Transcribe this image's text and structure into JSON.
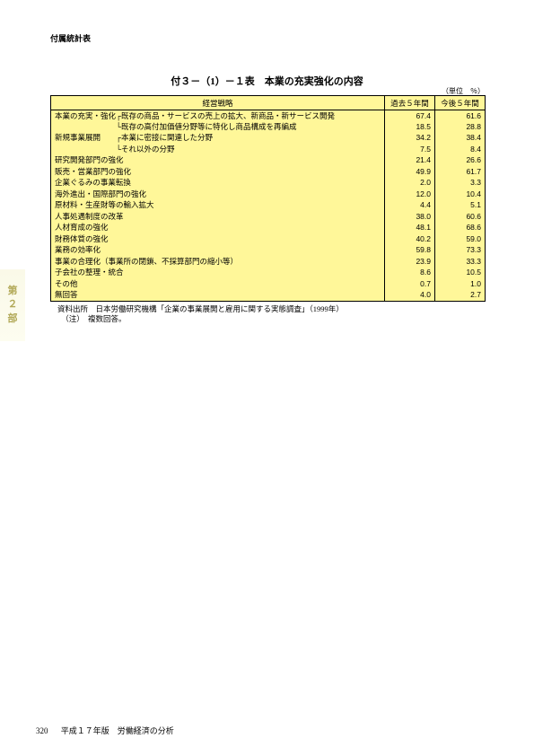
{
  "header_label": "付属統計表",
  "side_tab": [
    "第",
    "２",
    "部"
  ],
  "title": "付３－（1）－１表　本業の充実強化の内容",
  "unit": "（単位　％）",
  "columns": [
    "経営戦略",
    "過去５年間",
    "今後５年間"
  ],
  "rows": [
    {
      "label": "本業の充実・強化┌既存の商品・サービスの売上の拡大、新商品・新サービス開発",
      "v1": "67.4",
      "v2": "61.6"
    },
    {
      "label": "　　　　　　　　└既存の高付加価値分野等に特化し商品構成を再編成",
      "v1": "18.5",
      "v2": "28.8"
    },
    {
      "label": "新規事業展開　　┌本業に密接に関連した分野",
      "v1": "34.2",
      "v2": "38.4"
    },
    {
      "label": "　　　　　　　　└それ以外の分野",
      "v1": "7.5",
      "v2": "8.4"
    },
    {
      "label": "研究開発部門の強化",
      "v1": "21.4",
      "v2": "26.6"
    },
    {
      "label": "販売・営業部門の強化",
      "v1": "49.9",
      "v2": "61.7"
    },
    {
      "label": "企業ぐるみの事業転換",
      "v1": "2.0",
      "v2": "3.3"
    },
    {
      "label": "海外進出・国際部門の強化",
      "v1": "12.0",
      "v2": "10.4"
    },
    {
      "label": "原材料・生産財等の輸入拡大",
      "v1": "4.4",
      "v2": "5.1"
    },
    {
      "label": "人事処遇制度の改革",
      "v1": "38.0",
      "v2": "60.6"
    },
    {
      "label": "人材育成の強化",
      "v1": "48.1",
      "v2": "68.6"
    },
    {
      "label": "財務体質の強化",
      "v1": "40.2",
      "v2": "59.0"
    },
    {
      "label": "業務の効率化",
      "v1": "59.8",
      "v2": "73.3"
    },
    {
      "label": "事業の合理化（事業所の閉鎖、不採算部門の縮小等）",
      "v1": "23.9",
      "v2": "33.3"
    },
    {
      "label": "子会社の整理・統合",
      "v1": "8.6",
      "v2": "10.5"
    },
    {
      "label": "その他",
      "v1": "0.7",
      "v2": "1.0"
    },
    {
      "label": "無回答",
      "v1": "4.0",
      "v2": "2.7"
    }
  ],
  "source_line1": "資料出所　日本労働研究機構「企業の事業展開と雇用に関する実態調査」（1999年）",
  "source_line2": "　（注）　複数回答。",
  "footer_page": "320",
  "footer_text": "平成１７年版　労働経済の分析"
}
